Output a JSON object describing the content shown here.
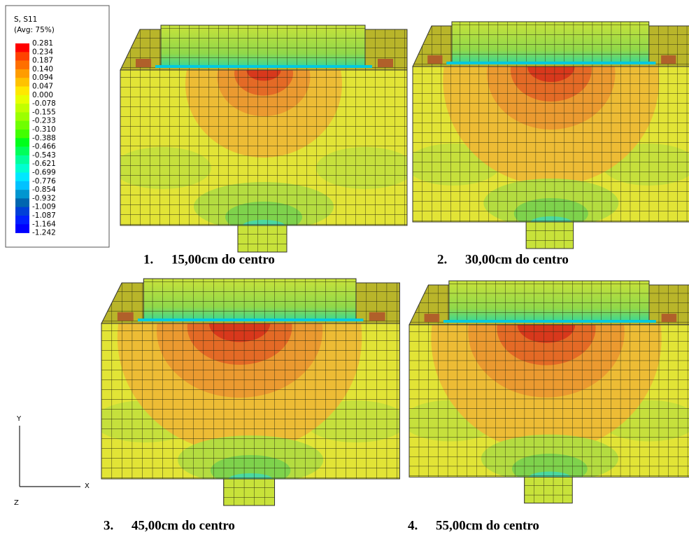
{
  "legend": {
    "title": "S, S11",
    "subtitle": "(Avg: 75%)",
    "labels": [
      "0.281",
      "0.234",
      "0.187",
      "0.140",
      "0.094",
      "0.047",
      "0.000",
      "-0.078",
      "-0.155",
      "-0.233",
      "-0.310",
      "-0.388",
      "-0.466",
      "-0.543",
      "-0.621",
      "-0.699",
      "-0.776",
      "-0.854",
      "-0.932",
      "-1.009",
      "-1.087",
      "-1.164",
      "-1.242"
    ],
    "colors": [
      "#ff0000",
      "#ff4200",
      "#ff6f00",
      "#ff9c00",
      "#ffc200",
      "#ffe800",
      "#e8ff00",
      "#c2ff00",
      "#9cff00",
      "#6fff00",
      "#42ff00",
      "#00ff1a",
      "#00ff5a",
      "#00ff9c",
      "#00ffd0",
      "#00e8ff",
      "#00c2ff",
      "#0096d0",
      "#0066b0",
      "#0040d8",
      "#0020ff",
      "#0000ff"
    ]
  },
  "panels": [
    {
      "number": "1.",
      "caption": "15,00cm do centro"
    },
    {
      "number": "2.",
      "caption": "30,00cm do centro"
    },
    {
      "number": "3.",
      "caption": "45,00cm do centro"
    },
    {
      "number": "4.",
      "caption": "55,00cm do centro"
    }
  ],
  "axes": {
    "y": "Y",
    "x": "X",
    "z": "Z"
  }
}
